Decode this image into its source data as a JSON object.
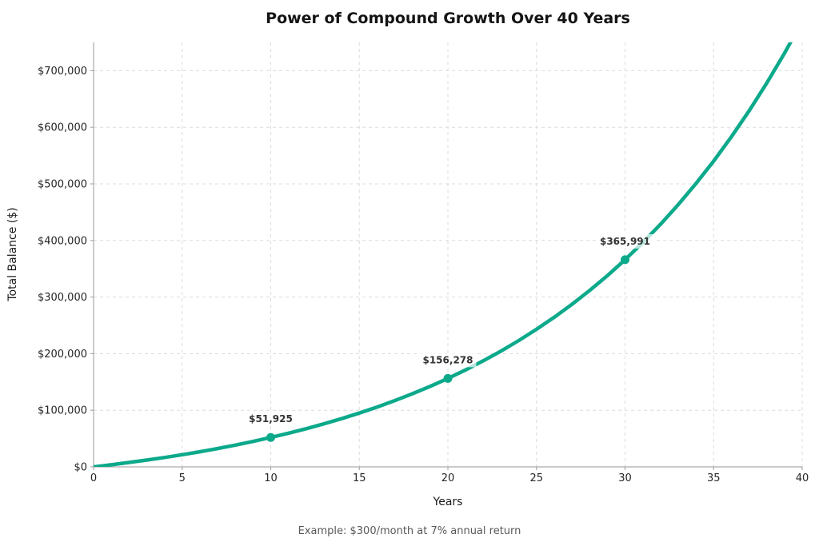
{
  "chart_data": {
    "type": "line",
    "title": "Power of Compound Growth Over 40 Years",
    "xlabel": "Years",
    "ylabel": "Total Balance ($)",
    "caption": "Example: $300/month at 7% annual return",
    "xlim": [
      0,
      40
    ],
    "ylim": [
      0,
      750000
    ],
    "grid": "dashed",
    "legend_position": "none",
    "line_color": "#0ca98b",
    "x_ticks": [
      {
        "v": 0,
        "label": "0"
      },
      {
        "v": 5,
        "label": "5"
      },
      {
        "v": 10,
        "label": "10"
      },
      {
        "v": 15,
        "label": "15"
      },
      {
        "v": 20,
        "label": "20"
      },
      {
        "v": 25,
        "label": "25"
      },
      {
        "v": 30,
        "label": "30"
      },
      {
        "v": 35,
        "label": "35"
      },
      {
        "v": 40,
        "label": "40"
      }
    ],
    "y_ticks": [
      {
        "v": 0,
        "label": "$0"
      },
      {
        "v": 100000,
        "label": "$100,000"
      },
      {
        "v": 200000,
        "label": "$200,000"
      },
      {
        "v": 300000,
        "label": "$300,000"
      },
      {
        "v": 400000,
        "label": "$400,000"
      },
      {
        "v": 500000,
        "label": "$500,000"
      },
      {
        "v": 600000,
        "label": "$600,000"
      },
      {
        "v": 700000,
        "label": "$700,000"
      }
    ],
    "series": [
      {
        "name": "balance",
        "x": [
          0,
          1,
          2,
          3,
          4,
          5,
          6,
          7,
          8,
          9,
          10,
          11,
          12,
          13,
          14,
          15,
          16,
          17,
          18,
          19,
          20,
          21,
          22,
          23,
          24,
          25,
          26,
          27,
          28,
          29,
          30,
          31,
          32,
          33,
          34,
          35,
          36,
          37,
          38,
          39,
          40
        ],
        "y": [
          0,
          3718,
          7704,
          11979,
          16563,
          21478,
          26748,
          32399,
          38459,
          44957,
          51925,
          59396,
          67408,
          75998,
          85209,
          95087,
          105678,
          117035,
          129213,
          142271,
          156278,
          171288,
          187388,
          204651,
          223163,
          243013,
          264298,
          287122,
          311595,
          337838,
          365991,
          396153,
          428509,
          463204,
          500408,
          540302,
          583079,
          628949,
          678136,
          730879,
          787434
        ]
      }
    ],
    "annotations": [
      {
        "x": 10,
        "y": 51925,
        "label": "$51,925"
      },
      {
        "x": 20,
        "y": 156278,
        "label": "$156,278"
      },
      {
        "x": 30,
        "y": 365991,
        "label": "$365,991"
      }
    ]
  }
}
